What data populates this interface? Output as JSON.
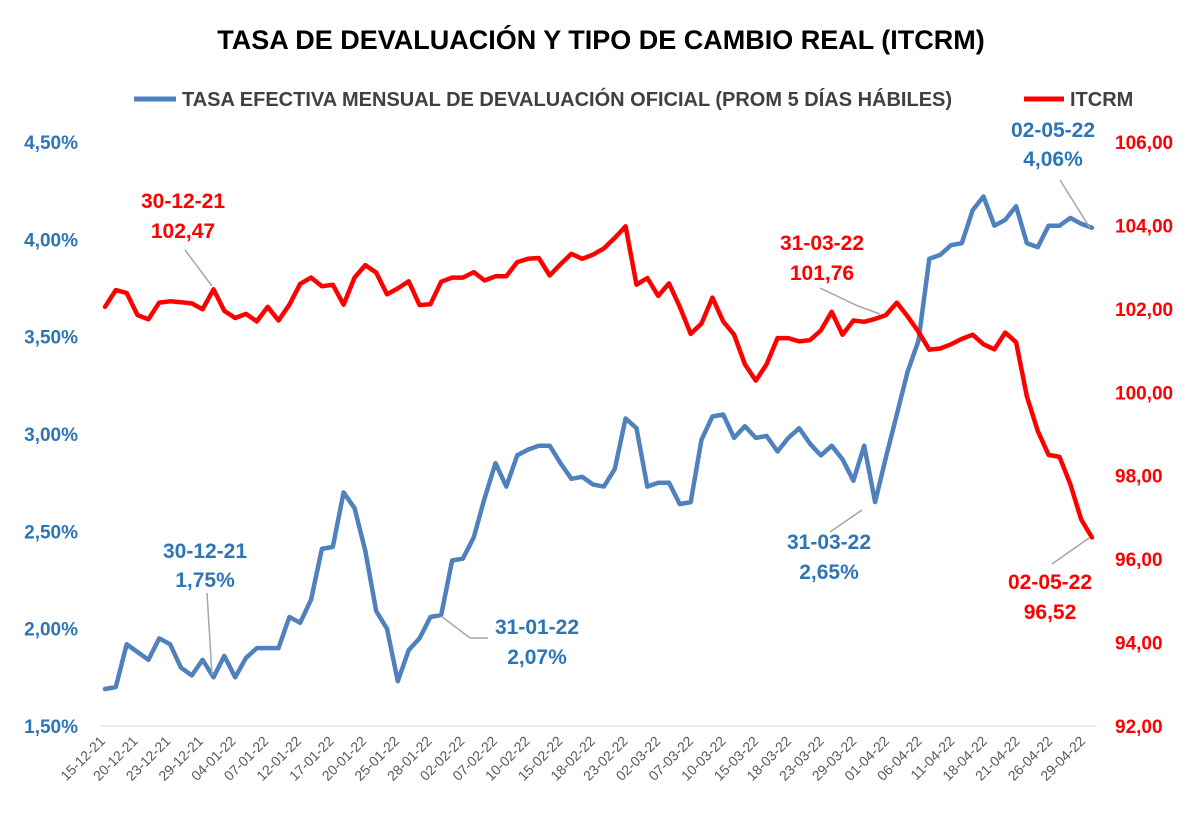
{
  "chart_data": {
    "type": "line",
    "title": "TASA DE DEVALUACIÓN Y TIPO DE CAMBIO REAL (ITCRM)",
    "legend_position": "top",
    "x_tick_labels": [
      "15-12-21",
      "20-12-21",
      "23-12-21",
      "29-12-21",
      "04-01-22",
      "07-01-22",
      "12-01-22",
      "17-01-22",
      "20-01-22",
      "25-01-22",
      "28-01-22",
      "02-02-22",
      "07-02-22",
      "10-02-22",
      "15-02-22",
      "18-02-22",
      "23-02-22",
      "02-03-22",
      "07-03-22",
      "10-03-22",
      "15-03-22",
      "18-03-22",
      "23-03-22",
      "29-03-22",
      "01-04-22",
      "06-04-22",
      "11-04-22",
      "18-04-22",
      "21-04-22",
      "26-04-22",
      "29-04-22"
    ],
    "y_left": {
      "ticks": [
        "1,50%",
        "2,00%",
        "2,50%",
        "3,00%",
        "3,50%",
        "4,00%",
        "4,50%"
      ],
      "range": [
        1.5,
        4.5
      ]
    },
    "y_right": {
      "ticks": [
        "92,00",
        "94,00",
        "96,00",
        "98,00",
        "100,00",
        "102,00",
        "104,00",
        "106,00"
      ],
      "range": [
        92,
        106
      ]
    },
    "series": [
      {
        "name": "TASA EFECTIVA MENSUAL DE DEVALUACIÓN OFICIAL (PROM 5 DÍAS HÁBILES)",
        "axis": "left",
        "color": "#4f81bd",
        "values": [
          1.69,
          1.7,
          1.92,
          1.88,
          1.84,
          1.95,
          1.92,
          1.8,
          1.76,
          1.84,
          1.75,
          1.86,
          1.75,
          1.85,
          1.9,
          1.9,
          1.9,
          2.06,
          2.03,
          2.15,
          2.41,
          2.42,
          2.7,
          2.62,
          2.4,
          2.09,
          2.0,
          1.73,
          1.89,
          1.95,
          2.06,
          2.07,
          2.35,
          2.36,
          2.47,
          2.67,
          2.85,
          2.73,
          2.89,
          2.92,
          2.94,
          2.94,
          2.85,
          2.77,
          2.78,
          2.74,
          2.73,
          2.82,
          3.08,
          3.03,
          2.73,
          2.75,
          2.75,
          2.64,
          2.65,
          2.97,
          3.09,
          3.1,
          2.98,
          3.04,
          2.98,
          2.99,
          2.91,
          2.98,
          3.03,
          2.95,
          2.89,
          2.94,
          2.87,
          2.76,
          2.94,
          2.65,
          2.88,
          3.1,
          3.32,
          3.48,
          3.9,
          3.92,
          3.97,
          3.98,
          4.15,
          4.22,
          4.07,
          4.1,
          4.17,
          3.98,
          3.96,
          4.07,
          4.07,
          4.11,
          4.08,
          4.06
        ]
      },
      {
        "name": "ITCRM",
        "axis": "right",
        "color": "#ff0000",
        "values": [
          102.05,
          102.45,
          102.38,
          101.85,
          101.75,
          102.15,
          102.18,
          102.16,
          102.13,
          101.99,
          102.47,
          101.95,
          101.78,
          101.88,
          101.7,
          102.05,
          101.72,
          102.1,
          102.6,
          102.75,
          102.54,
          102.58,
          102.1,
          102.75,
          103.05,
          102.87,
          102.35,
          102.49,
          102.66,
          102.09,
          102.11,
          102.65,
          102.75,
          102.75,
          102.88,
          102.68,
          102.78,
          102.78,
          103.12,
          103.2,
          103.22,
          102.8,
          103.07,
          103.32,
          103.2,
          103.3,
          103.45,
          103.7,
          103.98,
          102.58,
          102.74,
          102.31,
          102.61,
          102.05,
          101.4,
          101.65,
          102.27,
          101.7,
          101.38,
          100.67,
          100.28,
          100.67,
          101.3,
          101.3,
          101.22,
          101.25,
          101.48,
          101.93,
          101.38,
          101.72,
          101.69,
          101.76,
          101.85,
          102.15,
          101.82,
          101.45,
          101.02,
          101.05,
          101.15,
          101.28,
          101.38,
          101.15,
          101.03,
          101.43,
          101.2,
          99.9,
          99.07,
          98.5,
          98.45,
          97.8,
          96.95,
          96.52
        ]
      }
    ],
    "annotations": [
      {
        "id": "ann-blue-1",
        "series": "blue",
        "date": "30-12-21",
        "value": "1,75%"
      },
      {
        "id": "ann-blue-2",
        "series": "blue",
        "date": "31-01-22",
        "value": "2,07%"
      },
      {
        "id": "ann-blue-3",
        "series": "blue",
        "date": "31-03-22",
        "value": "2,65%"
      },
      {
        "id": "ann-blue-4",
        "series": "blue",
        "date": "02-05-22",
        "value": "4,06%"
      },
      {
        "id": "ann-red-1",
        "series": "red",
        "date": "30-12-21",
        "value": "102,47"
      },
      {
        "id": "ann-red-2",
        "series": "red",
        "date": "31-03-22",
        "value": "101,76"
      },
      {
        "id": "ann-red-3",
        "series": "red",
        "date": "02-05-22",
        "value": "96,52"
      }
    ]
  }
}
